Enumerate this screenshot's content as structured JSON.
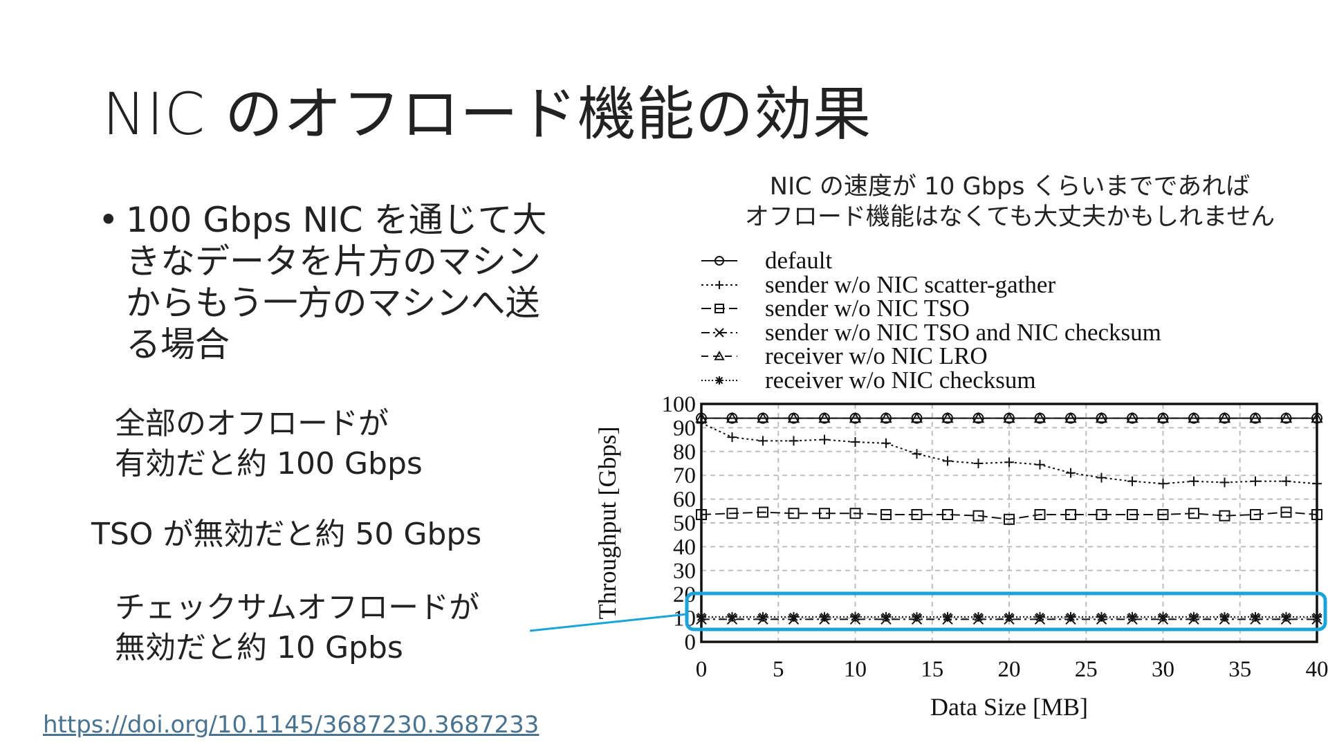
{
  "slide": {
    "title": "NIC のオフロード機能の効果",
    "bullet": "100 Gbps NIC を通じて大きなデータを片方のマシンからもう一方のマシンへ送る場合",
    "notes": {
      "all_offload": "全部のオフロードが\n有効だと約 100 Gbps",
      "tso_disabled": "TSO が無効だと約 50 Gbps",
      "checksum_disabled": "チェックサムオフロードが\n無効だと約 10 Gpbs"
    },
    "doi": "https://doi.org/10.1145/3687230.3687233",
    "chart_caption": "NIC の速度が 10 Gbps くらいまでであれば\nオフロード機能はなくても大丈夫かもしれません",
    "highlight_color": "#1aa3d9"
  },
  "chart_data": {
    "type": "line",
    "xlabel": "Data Size [MB]",
    "ylabel": "Throughput [Gbps]",
    "xlim": [
      0,
      40
    ],
    "ylim": [
      0,
      100
    ],
    "xticks": [
      0,
      5,
      10,
      15,
      20,
      25,
      30,
      35,
      40
    ],
    "yticks": [
      0,
      10,
      20,
      30,
      40,
      50,
      60,
      70,
      80,
      90,
      100
    ],
    "grid": true,
    "legend_position": "top",
    "x": [
      0,
      2,
      4,
      6,
      8,
      10,
      12,
      14,
      16,
      18,
      20,
      22,
      24,
      26,
      28,
      30,
      32,
      34,
      36,
      38,
      40
    ],
    "series": [
      {
        "name": "default",
        "marker": "circle",
        "dash": "solid",
        "values": [
          94,
          94,
          94,
          94,
          94,
          94,
          94,
          94,
          94,
          94,
          94,
          94,
          94,
          94,
          94,
          94,
          94,
          94,
          94,
          94,
          94
        ]
      },
      {
        "name": "sender w/o NIC scatter-gather",
        "marker": "plus",
        "dash": "dot",
        "values": [
          92,
          86,
          84.5,
          84.5,
          85,
          84,
          83.5,
          79,
          76,
          75,
          75.5,
          74.5,
          71,
          69,
          67.5,
          66.5,
          67.5,
          67,
          67.5,
          67.5,
          66.5
        ]
      },
      {
        "name": "sender w/o NIC TSO",
        "marker": "square",
        "dash": "longdash",
        "values": [
          53.5,
          54,
          54.5,
          54,
          54,
          54,
          53.5,
          53.5,
          53.5,
          53,
          51.5,
          53.5,
          53.5,
          53.5,
          53.5,
          53.5,
          54,
          53,
          53.5,
          54.5,
          53.5
        ]
      },
      {
        "name": "sender w/o NIC TSO and NIC checksum",
        "marker": "x",
        "dash": "dashdot",
        "values": [
          9.5,
          9.5,
          9.5,
          9.5,
          9.5,
          9.5,
          9.5,
          9.5,
          9.5,
          9.5,
          9.5,
          9.5,
          9.5,
          9.5,
          9.5,
          9.5,
          9.5,
          9.5,
          9.5,
          9.5,
          9.5
        ]
      },
      {
        "name": "receiver w/o NIC LRO",
        "marker": "triangle",
        "dash": "dash",
        "values": [
          94,
          94,
          94,
          94,
          94,
          94,
          94,
          94,
          94,
          94,
          94,
          94,
          94,
          94,
          94,
          94,
          94,
          94,
          94,
          94,
          94
        ]
      },
      {
        "name": "receiver w/o NIC checksum",
        "marker": "star",
        "dash": "dotted",
        "values": [
          10.5,
          10.5,
          10.5,
          10.5,
          10.5,
          10.5,
          10.5,
          10.5,
          10.5,
          10.5,
          10.5,
          10.5,
          10.5,
          10.5,
          10.5,
          10.5,
          10.5,
          10.5,
          10.5,
          10.5,
          10.5
        ]
      }
    ]
  }
}
